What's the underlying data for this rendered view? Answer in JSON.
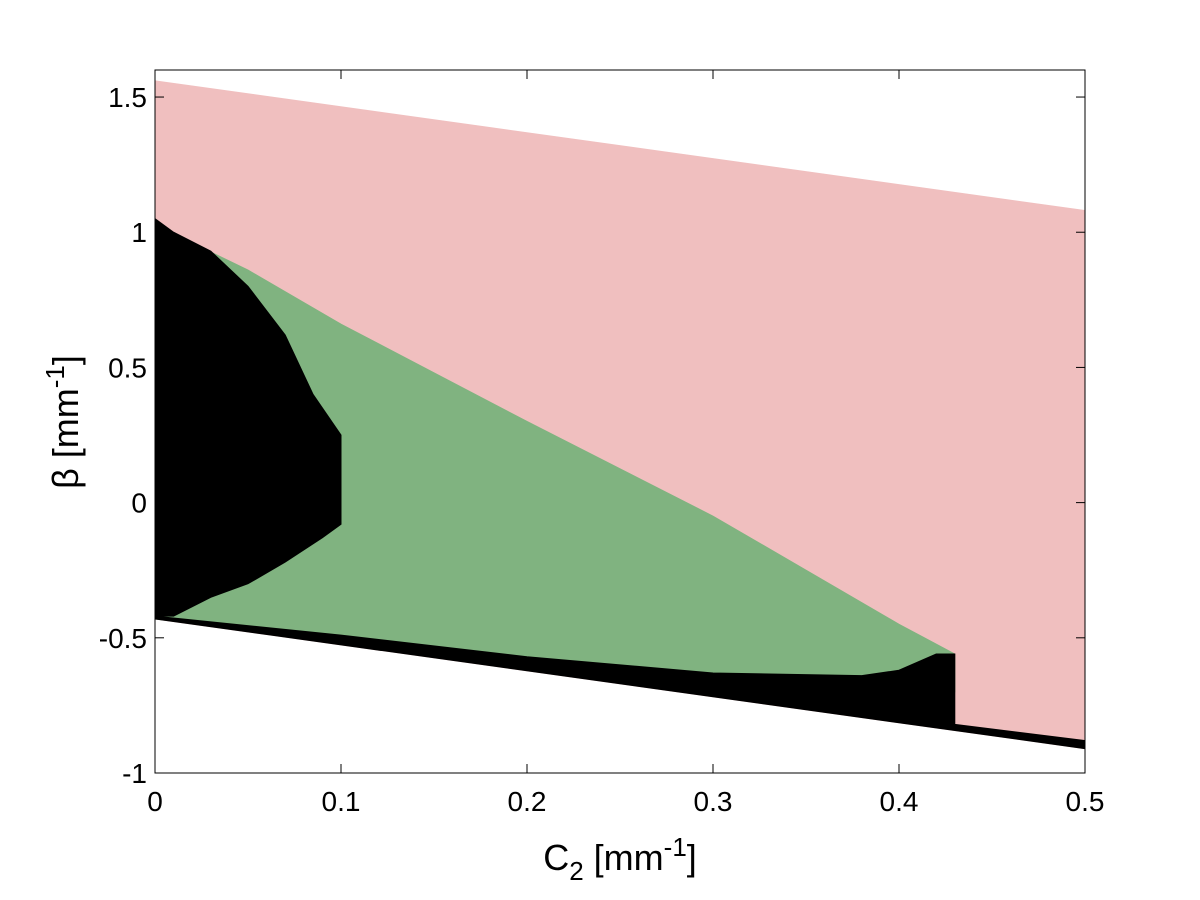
{
  "chart_data": {
    "type": "region",
    "xlabel": [
      "C",
      "2",
      " [mm",
      "-1",
      "]"
    ],
    "ylabel": [
      "β [mm",
      "-1",
      "]"
    ],
    "xlim": [
      0,
      0.5
    ],
    "ylim": [
      -1,
      1.6
    ],
    "xticks": [
      0,
      0.1,
      0.2,
      0.3,
      0.4,
      0.5
    ],
    "yticks": [
      -1,
      -0.5,
      0,
      0.5,
      1,
      1.5
    ],
    "regions": [
      {
        "color": "#f0bfbf",
        "x": [
          0,
          0.5,
          0.5,
          0
        ],
        "y": [
          1.56,
          1.08,
          -0.91,
          -0.43
        ]
      },
      {
        "color": "#80b380",
        "x": [
          0,
          0.02,
          0.05,
          0.1,
          0.2,
          0.3,
          0.4,
          0.43,
          0.43,
          0.2,
          0
        ],
        "y": [
          1.0,
          0.96,
          0.86,
          0.66,
          0.3,
          -0.05,
          -0.45,
          -0.56,
          -0.7,
          -0.6,
          -0.43
        ]
      },
      {
        "color": "#000000",
        "x": [
          0,
          0.01,
          0.03,
          0.05,
          0.07,
          0.085,
          0.1,
          0.1,
          0.09,
          0.07,
          0.05,
          0.03,
          0.01,
          0
        ],
        "y": [
          1.05,
          1.0,
          0.93,
          0.8,
          0.62,
          0.4,
          0.25,
          -0.08,
          -0.13,
          -0.22,
          -0.3,
          -0.35,
          -0.42,
          -0.42
        ]
      },
      {
        "color": "#000000",
        "x": [
          0,
          0.1,
          0.2,
          0.3,
          0.38,
          0.4,
          0.42,
          0.43,
          0.43,
          0.5,
          0.5,
          0
        ],
        "y": [
          -0.42,
          -0.49,
          -0.57,
          -0.63,
          -0.64,
          -0.62,
          -0.56,
          -0.56,
          -0.82,
          -0.88,
          -0.91,
          -0.43
        ]
      }
    ]
  }
}
